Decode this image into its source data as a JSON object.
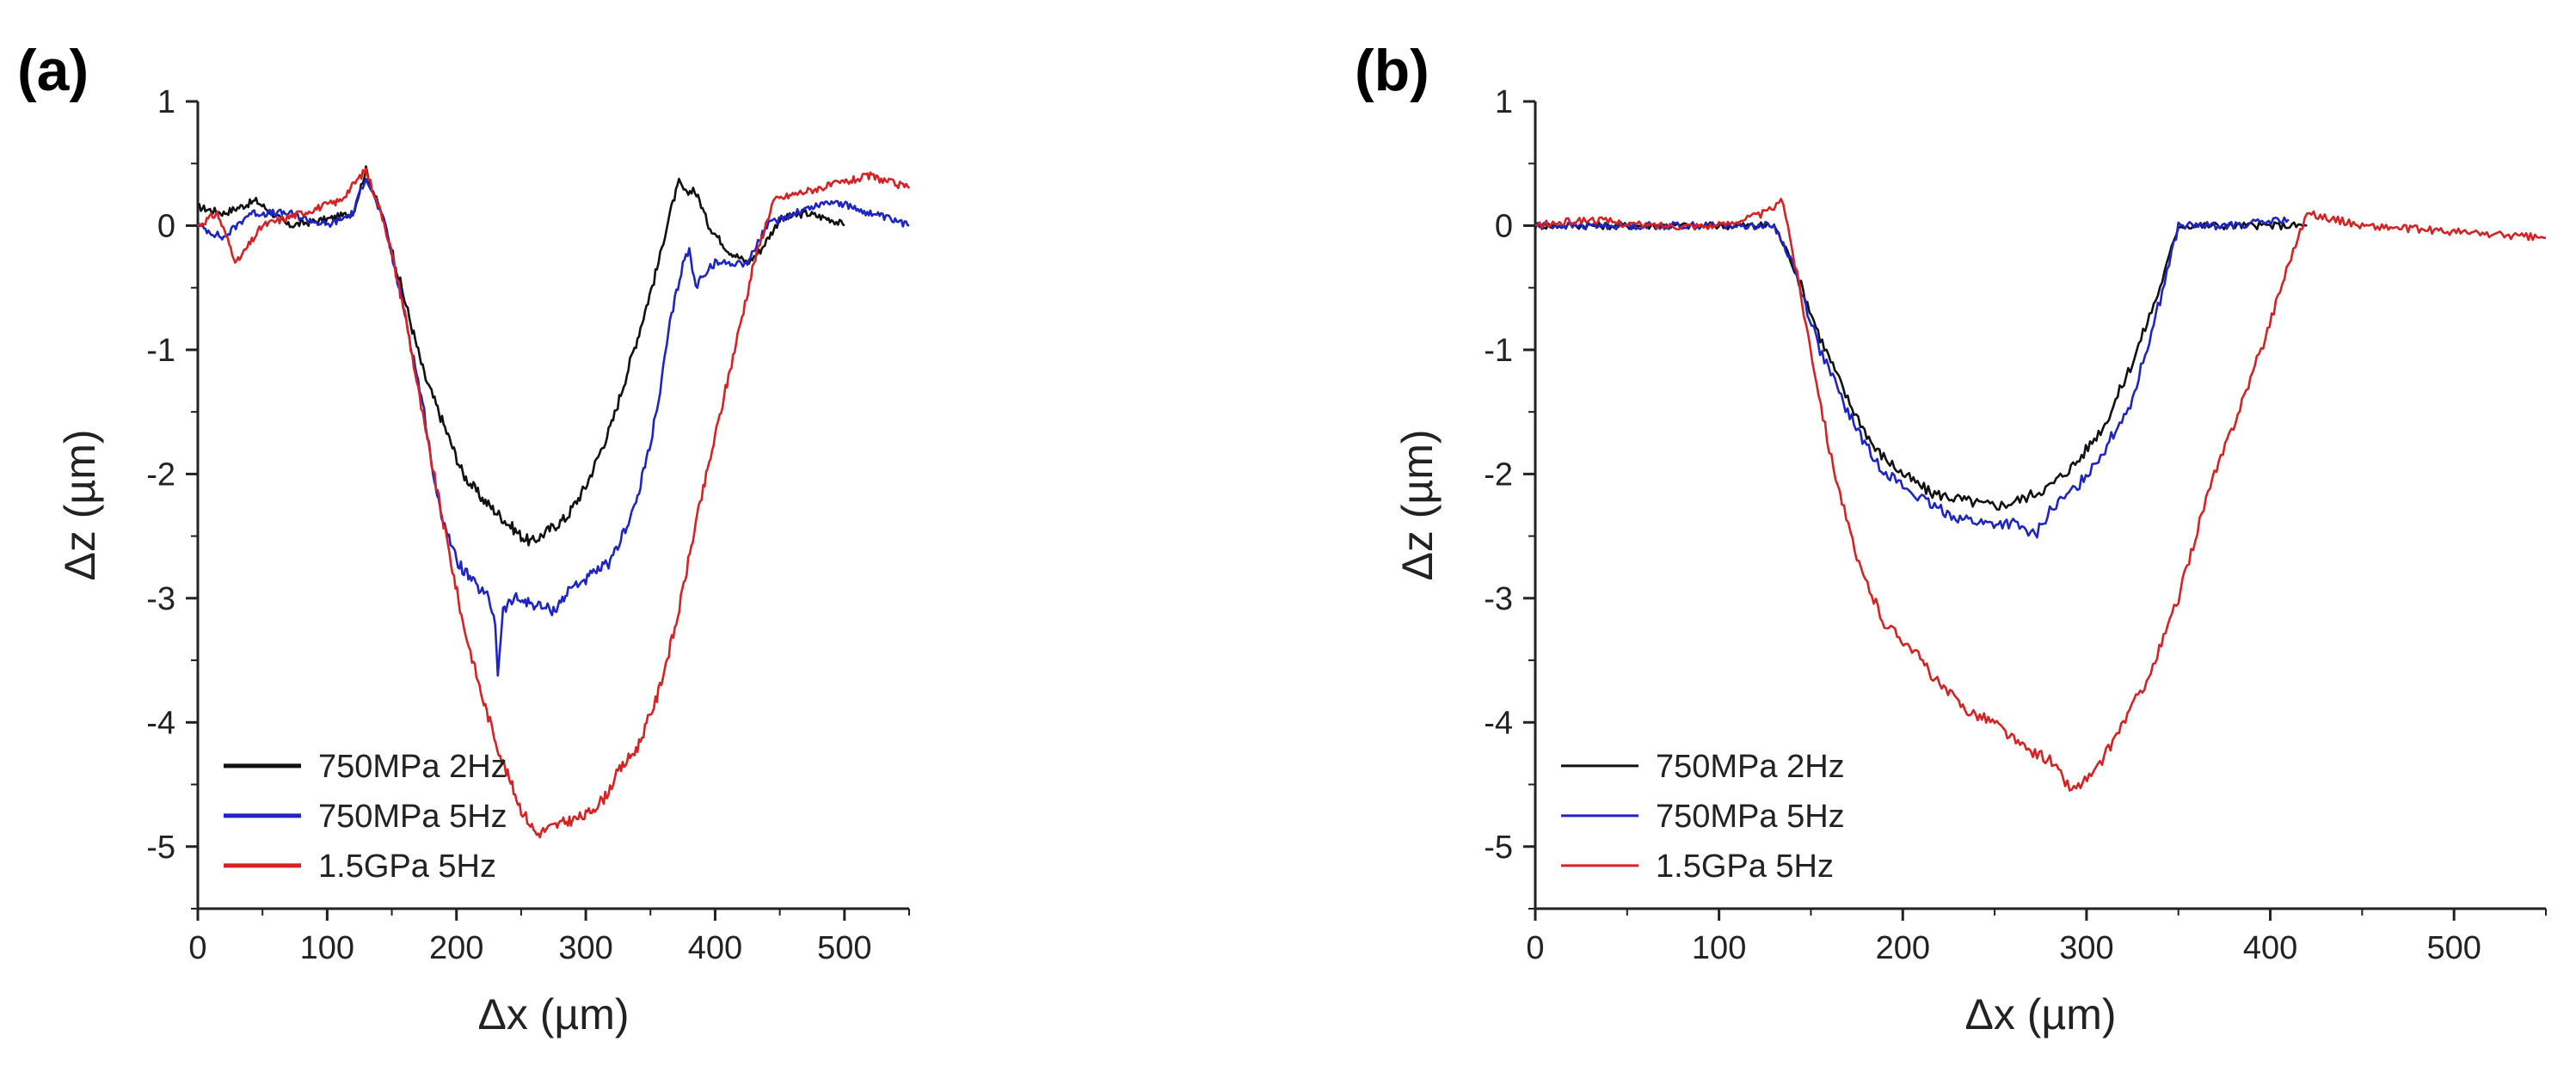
{
  "chart_data": [
    {
      "type": "line",
      "panel_label": "(a)",
      "xlabel": "Δx (µm)",
      "ylabel": "Δz (µm)",
      "xlim": [
        0,
        550
      ],
      "ylim": [
        -5.5,
        1.0
      ],
      "xticks": [
        0,
        100,
        200,
        300,
        400,
        500
      ],
      "yticks": [
        1,
        0,
        -1,
        -2,
        -3,
        -4,
        -5
      ],
      "legend_position": "bottom-left",
      "series": [
        {
          "name": "750MPa 2Hz",
          "color": "#111111",
          "x": [
            0,
            20,
            45,
            70,
            100,
            120,
            130,
            145,
            160,
            175,
            190,
            205,
            220,
            235,
            250,
            258,
            265,
            285,
            300,
            320,
            340,
            355,
            365,
            372,
            378,
            383,
            388,
            395,
            410,
            425,
            435,
            450,
            470,
            490,
            500
          ],
          "y": [
            0.15,
            0.1,
            0.2,
            0.0,
            0.05,
            0.1,
            0.45,
            0.0,
            -0.6,
            -1.2,
            -1.6,
            -2.0,
            -2.2,
            -2.35,
            -2.5,
            -2.55,
            -2.5,
            -2.35,
            -2.1,
            -1.6,
            -0.9,
            -0.35,
            0.1,
            0.35,
            0.25,
            0.3,
            0.2,
            0.0,
            -0.2,
            -0.3,
            -0.2,
            0.05,
            0.1,
            0.05,
            0.0
          ]
        },
        {
          "name": "750MPa 5Hz",
          "color": "#1f25c4",
          "x": [
            0,
            20,
            40,
            70,
            100,
            120,
            130,
            145,
            160,
            175,
            185,
            200,
            215,
            225,
            230,
            232,
            236,
            245,
            260,
            275,
            290,
            300,
            320,
            340,
            355,
            365,
            375,
            380,
            385,
            390,
            400,
            425,
            440,
            460,
            490,
            520,
            550
          ],
          "y": [
            0.0,
            -0.1,
            0.1,
            0.1,
            0.0,
            0.1,
            0.4,
            0.0,
            -0.7,
            -1.5,
            -2.2,
            -2.7,
            -2.9,
            -3.0,
            -3.2,
            -3.6,
            -3.1,
            -3.0,
            -3.05,
            -3.1,
            -2.9,
            -2.85,
            -2.7,
            -2.2,
            -1.5,
            -0.8,
            -0.3,
            -0.2,
            -0.5,
            -0.4,
            -0.3,
            -0.3,
            0.0,
            0.1,
            0.2,
            0.1,
            0.0
          ]
        },
        {
          "name": "1.5GPa 5Hz",
          "color": "#d62222",
          "x": [
            0,
            15,
            30,
            50,
            80,
            110,
            130,
            145,
            160,
            175,
            190,
            205,
            220,
            235,
            250,
            262,
            272,
            285,
            300,
            315,
            325,
            340,
            355,
            370,
            385,
            400,
            415,
            430,
            445,
            460,
            480,
            500,
            520,
            550
          ],
          "y": [
            0.0,
            0.1,
            -0.3,
            0.0,
            0.1,
            0.2,
            0.45,
            0.0,
            -0.7,
            -1.6,
            -2.4,
            -3.2,
            -3.8,
            -4.3,
            -4.7,
            -4.9,
            -4.85,
            -4.8,
            -4.75,
            -4.6,
            -4.4,
            -4.2,
            -3.8,
            -3.2,
            -2.4,
            -1.7,
            -1.0,
            -0.3,
            0.2,
            0.25,
            0.3,
            0.35,
            0.4,
            0.3
          ]
        }
      ]
    },
    {
      "type": "line",
      "panel_label": "(b)",
      "xlabel": "Δx (µm)",
      "ylabel": "Δz (µm)",
      "xlim": [
        0,
        550
      ],
      "ylim": [
        -5.5,
        1.0
      ],
      "xticks": [
        0,
        100,
        200,
        300,
        400,
        500
      ],
      "yticks": [
        1,
        0,
        -1,
        -2,
        -3,
        -4,
        -5
      ],
      "legend_position": "bottom-left",
      "series": [
        {
          "name": "750MPa 2Hz",
          "color": "#111111",
          "x": [
            0,
            50,
            100,
            130,
            140,
            155,
            170,
            185,
            200,
            215,
            230,
            245,
            255,
            265,
            280,
            295,
            310,
            325,
            340,
            350,
            370,
            400,
            420
          ],
          "y": [
            0.0,
            0.0,
            0.0,
            0.0,
            -0.3,
            -0.9,
            -1.4,
            -1.8,
            -2.0,
            -2.15,
            -2.2,
            -2.25,
            -2.25,
            -2.2,
            -2.1,
            -1.9,
            -1.6,
            -1.1,
            -0.5,
            0.0,
            0.0,
            0.0,
            0.0
          ]
        },
        {
          "name": "750MPa 5Hz",
          "color": "#1f25c4",
          "x": [
            0,
            50,
            100,
            130,
            140,
            155,
            170,
            185,
            200,
            215,
            230,
            245,
            260,
            272,
            280,
            295,
            310,
            325,
            340,
            350,
            380,
            410
          ],
          "y": [
            0.0,
            0.0,
            0.0,
            0.0,
            -0.3,
            -1.0,
            -1.5,
            -1.9,
            -2.1,
            -2.25,
            -2.35,
            -2.4,
            -2.4,
            -2.5,
            -2.3,
            -2.1,
            -1.8,
            -1.4,
            -0.6,
            0.0,
            0.0,
            0.05
          ]
        },
        {
          "name": "1.5GPa 5Hz",
          "color": "#d62222",
          "x": [
            0,
            30,
            60,
            100,
            125,
            135,
            145,
            160,
            175,
            190,
            205,
            220,
            235,
            250,
            265,
            280,
            292,
            305,
            320,
            335,
            350,
            365,
            380,
            395,
            410,
            420,
            450,
            500,
            550
          ],
          "y": [
            0.0,
            0.05,
            0.0,
            0.0,
            0.1,
            0.2,
            -0.6,
            -1.8,
            -2.7,
            -3.2,
            -3.4,
            -3.7,
            -3.9,
            -4.0,
            -4.2,
            -4.3,
            -4.55,
            -4.4,
            -4.0,
            -3.6,
            -3.0,
            -2.2,
            -1.6,
            -1.0,
            -0.3,
            0.1,
            0.0,
            -0.05,
            -0.1
          ]
        }
      ]
    }
  ]
}
